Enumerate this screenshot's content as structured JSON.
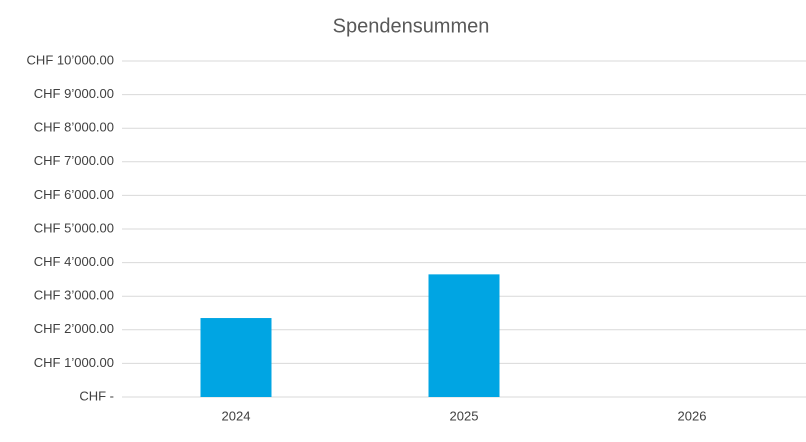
{
  "chart_data": {
    "type": "bar",
    "title": "Spendensummen",
    "categories": [
      "2024",
      "2025",
      "2026"
    ],
    "values": [
      2350,
      3650,
      0
    ],
    "color": "#00a5e3",
    "ylim": [
      0,
      10000
    ],
    "yticks": [
      {
        "value": 0,
        "label": "CHF -"
      },
      {
        "value": 1000,
        "label": "CHF 1’000.00"
      },
      {
        "value": 2000,
        "label": "CHF 2’000.00"
      },
      {
        "value": 3000,
        "label": "CHF 3’000.00"
      },
      {
        "value": 4000,
        "label": "CHF 4’000.00"
      },
      {
        "value": 5000,
        "label": "CHF 5’000.00"
      },
      {
        "value": 6000,
        "label": "CHF 6’000.00"
      },
      {
        "value": 7000,
        "label": "CHF 7’000.00"
      },
      {
        "value": 8000,
        "label": "CHF 8’000.00"
      },
      {
        "value": 9000,
        "label": "CHF 9’000.00"
      },
      {
        "value": 10000,
        "label": "CHF 10’000.00"
      }
    ],
    "grid": true
  }
}
